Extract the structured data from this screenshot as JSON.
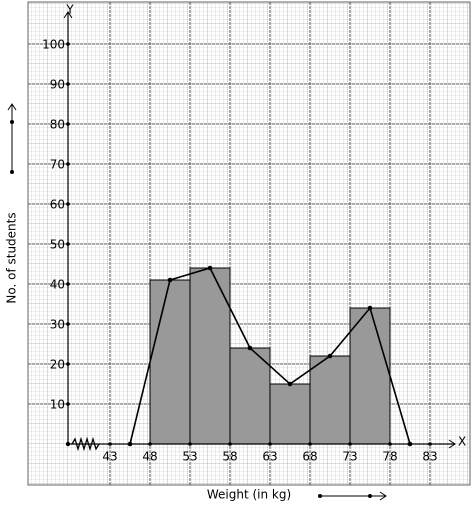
{
  "chart_data": {
    "type": "histogram",
    "bins": [
      48,
      53,
      58,
      63,
      68,
      73,
      78
    ],
    "values": [
      41,
      44,
      24,
      15,
      22,
      34
    ],
    "color": "#999999",
    "polygon": {
      "x": [
        45.5,
        50.5,
        55.5,
        60.5,
        65.5,
        70.5,
        75.5,
        80.5
      ],
      "values": [
        0,
        41,
        44,
        24,
        15,
        22,
        34,
        0
      ],
      "color": "#000000"
    },
    "x_label": "Weight (in kg)",
    "y_label": "No. of students",
    "x_axis_name": "X",
    "y_axis_name": "Y",
    "xlim": [
      37.75,
      85.5
    ],
    "ylim": [
      0,
      108
    ],
    "xticks": [
      43,
      48,
      53,
      58,
      63,
      68,
      73,
      78,
      83
    ],
    "yticks": [
      10,
      20,
      30,
      40,
      50,
      60,
      70,
      80,
      90,
      100
    ],
    "grid": true
  }
}
